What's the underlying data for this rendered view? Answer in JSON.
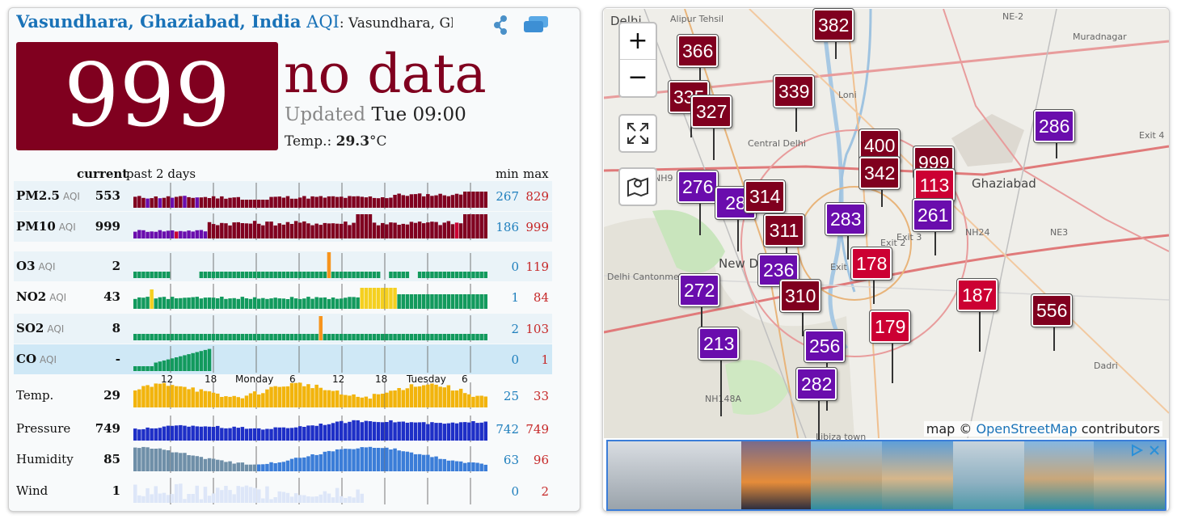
{
  "header": {
    "city": "Vasundhara, Ghaziabad, India",
    "aqi_word": "AQI",
    "rest": ": Vasundhara, Ghaziabad"
  },
  "main": {
    "aqi_value": "999",
    "status": "no data",
    "updated_label": "Updated",
    "updated_time": "Tue 09:00",
    "temp_label": "Temp.:",
    "temp_value": "29.3",
    "temp_unit": "°C"
  },
  "columns": {
    "current": "current",
    "past": "past 2 days",
    "min": "min",
    "max": "max"
  },
  "time_axis": [
    "12",
    "18",
    "Monday",
    "6",
    "12",
    "18",
    "Tuesday",
    "6"
  ],
  "rows": [
    {
      "name": "PM2.5",
      "aqi": "AQI",
      "current": "553",
      "min": "267",
      "max": "829"
    },
    {
      "name": "PM10",
      "aqi": "AQI",
      "current": "999",
      "min": "186",
      "max": "999"
    },
    {
      "name": "O3",
      "aqi": "AQI",
      "current": "2",
      "min": "0",
      "max": "119"
    },
    {
      "name": "NO2",
      "aqi": "AQI",
      "current": "43",
      "min": "1",
      "max": "84"
    },
    {
      "name": "SO2",
      "aqi": "AQI",
      "current": "8",
      "min": "2",
      "max": "103"
    },
    {
      "name": "CO",
      "aqi": "AQI",
      "current": "-",
      "min": "0",
      "max": "1"
    },
    {
      "name": "Temp.",
      "aqi": "",
      "current": "29",
      "min": "25",
      "max": "33"
    },
    {
      "name": "Pressure",
      "aqi": "",
      "current": "749",
      "min": "742",
      "max": "749"
    },
    {
      "name": "Humidity",
      "aqi": "",
      "current": "85",
      "min": "63",
      "max": "96"
    },
    {
      "name": "Wind",
      "aqi": "",
      "current": "1",
      "min": "0",
      "max": "2"
    }
  ],
  "colors": {
    "hazardous": "#80001f",
    "very_unhealthy": "#6a0dad",
    "unhealthy": "#cc0033",
    "good": "#129a5d",
    "moderate": "#f5d020",
    "usg": "#f7941d",
    "link": "#1a73b8"
  },
  "map": {
    "zoom_in": "+",
    "zoom_out": "−",
    "markers": [
      "382",
      "366",
      "335",
      "327",
      "339",
      "286",
      "400",
      "342",
      "999",
      "113",
      "276",
      "28",
      "314",
      "311",
      "283",
      "261",
      "236",
      "178",
      "272",
      "310",
      "187",
      "556",
      "179",
      "213",
      "256",
      "282"
    ],
    "place_labels": [
      "Delhi",
      "Alipur Tehsil",
      "Loni",
      "Muradnagar",
      "Central Delhi",
      "Ghaziabad",
      "New Delhi",
      "Delhi Cantonment",
      "NH24",
      "NE3",
      "NE-2",
      "NH148A",
      "Libiza town",
      "Dadri",
      "Exit 1",
      "Exit 2",
      "Exit 3",
      "Exit 4",
      "NH9"
    ],
    "attribution_prefix": "map ©",
    "attribution_link": "OpenStreetMap",
    "attribution_suffix": "contributors"
  }
}
